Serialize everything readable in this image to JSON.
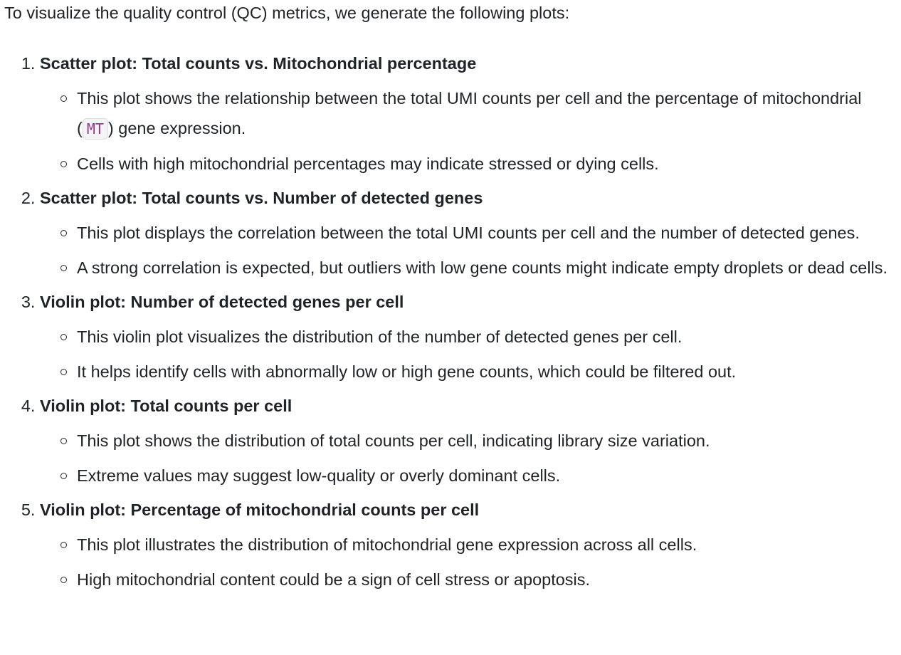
{
  "intro": "To visualize the quality control (QC) metrics, we generate the following plots:",
  "items": [
    {
      "title": "Scatter plot: Total counts vs. Mitochondrial percentage",
      "bullets": [
        {
          "before": "This plot shows the relationship between the total UMI counts per cell and the percentage of mitochondrial (",
          "code": "MT",
          "after": ") gene expression."
        },
        {
          "text": "Cells with high mitochondrial percentages may indicate stressed or dying cells."
        }
      ]
    },
    {
      "title": "Scatter plot: Total counts vs. Number of detected genes",
      "bullets": [
        {
          "text": "This plot displays the correlation between the total UMI counts per cell and the number of detected genes."
        },
        {
          "text": "A strong correlation is expected, but outliers with low gene counts might indicate empty droplets or dead cells."
        }
      ]
    },
    {
      "title": "Violin plot: Number of detected genes per cell",
      "bullets": [
        {
          "text": "This violin plot visualizes the distribution of the number of detected genes per cell."
        },
        {
          "text": "It helps identify cells with abnormally low or high gene counts, which could be filtered out."
        }
      ]
    },
    {
      "title": "Violin plot: Total counts per cell",
      "bullets": [
        {
          "text": "This plot shows the distribution of total counts per cell, indicating library size variation."
        },
        {
          "text": "Extreme values may suggest low-quality or overly dominant cells."
        }
      ]
    },
    {
      "title": "Violin plot: Percentage of mitochondrial counts per cell",
      "bullets": [
        {
          "text": "This plot illustrates the distribution of mitochondrial gene expression across all cells."
        },
        {
          "text": "High mitochondrial content could be a sign of cell stress or apoptosis."
        }
      ]
    }
  ]
}
